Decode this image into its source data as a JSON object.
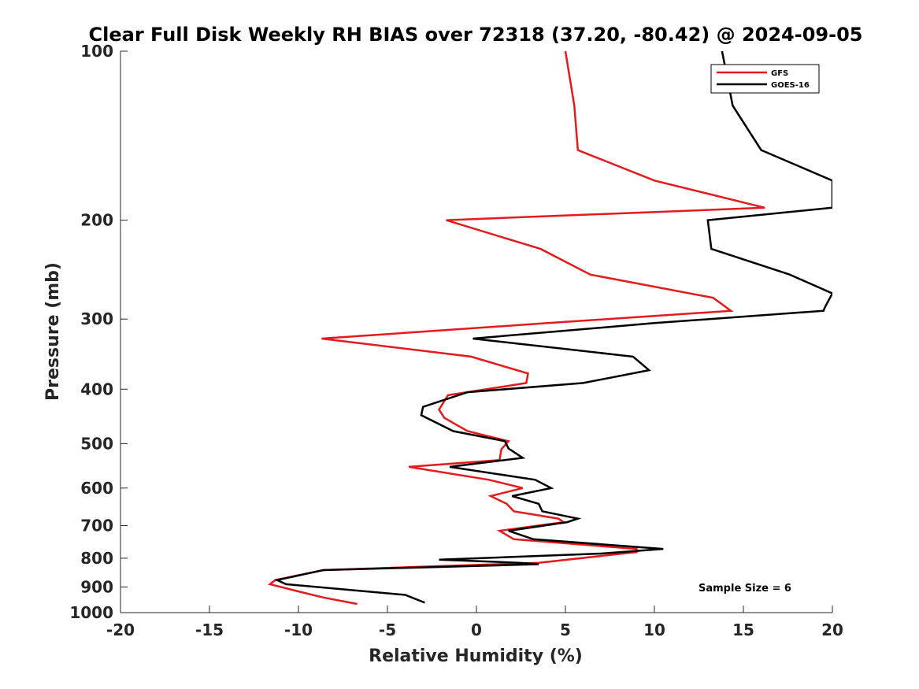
{
  "chart_data": {
    "type": "line",
    "title": "Clear Full Disk Weekly RH BIAS over 72318 (37.20, -80.42) @ 2024-09-05",
    "xlabel": "Relative Humidity (%)",
    "ylabel": "Pressure (mb)",
    "xlim": [
      -20,
      20
    ],
    "ylim": [
      100,
      1000
    ],
    "y_scale": "log",
    "y_reversed": true,
    "x_ticks": [
      "-20",
      "-15",
      "-10",
      "-5",
      "0",
      "5",
      "10",
      "15",
      "20"
    ],
    "y_ticks": [
      "100",
      "200",
      "300",
      "400",
      "500",
      "600",
      "700",
      "800",
      "900",
      "1000"
    ],
    "grid": false,
    "legend_position": "top-right",
    "annotation": "Sample Size = 6",
    "series": [
      {
        "name": "GFS",
        "color": "#e41a1c",
        "points": [
          [
            5.0,
            100
          ],
          [
            5.5,
            125
          ],
          [
            5.7,
            150
          ],
          [
            10.0,
            170
          ],
          [
            16.2,
            190
          ],
          [
            -1.7,
            200
          ],
          [
            3.6,
            225
          ],
          [
            6.4,
            250
          ],
          [
            13.3,
            275
          ],
          [
            14.3,
            290
          ],
          [
            4.0,
            305
          ],
          [
            -8.7,
            325
          ],
          [
            -0.3,
            350
          ],
          [
            2.9,
            375
          ],
          [
            2.8,
            390
          ],
          [
            -1.6,
            410
          ],
          [
            -2.1,
            435
          ],
          [
            -1.8,
            450
          ],
          [
            -0.5,
            475
          ],
          [
            1.8,
            495
          ],
          [
            1.4,
            512
          ],
          [
            1.3,
            535
          ],
          [
            -3.8,
            550
          ],
          [
            0.7,
            580
          ],
          [
            2.6,
            600
          ],
          [
            0.8,
            620
          ],
          [
            1.7,
            640
          ],
          [
            2.1,
            660
          ],
          [
            4.6,
            680
          ],
          [
            4.9,
            690
          ],
          [
            1.3,
            715
          ],
          [
            2.1,
            740
          ],
          [
            9.0,
            770
          ],
          [
            9.0,
            780
          ],
          [
            3.5,
            815
          ],
          [
            -8.6,
            840
          ],
          [
            -11.3,
            875
          ],
          [
            -11.6,
            890
          ],
          [
            -10.1,
            915
          ],
          [
            -8.6,
            940
          ],
          [
            -6.7,
            965
          ]
        ]
      },
      {
        "name": "GOES-16",
        "color": "#000000",
        "points": [
          [
            13.8,
            100
          ],
          [
            14.4,
            125
          ],
          [
            16.0,
            150
          ],
          [
            20.0,
            170
          ],
          [
            20.0,
            190
          ],
          [
            13.0,
            200
          ],
          [
            13.2,
            225
          ],
          [
            17.6,
            250
          ],
          [
            20.0,
            270
          ],
          [
            19.6,
            285
          ],
          [
            19.5,
            290
          ],
          [
            10.0,
            305
          ],
          [
            -0.2,
            325
          ],
          [
            8.8,
            350
          ],
          [
            9.7,
            370
          ],
          [
            6.0,
            390
          ],
          [
            -0.5,
            405
          ],
          [
            -3.0,
            430
          ],
          [
            -3.1,
            445
          ],
          [
            -1.3,
            475
          ],
          [
            1.6,
            495
          ],
          [
            1.8,
            510
          ],
          [
            2.6,
            530
          ],
          [
            -1.5,
            550
          ],
          [
            3.3,
            580
          ],
          [
            4.2,
            600
          ],
          [
            2.0,
            620
          ],
          [
            3.5,
            640
          ],
          [
            3.7,
            660
          ],
          [
            5.7,
            680
          ],
          [
            5.1,
            690
          ],
          [
            1.8,
            715
          ],
          [
            3.2,
            740
          ],
          [
            10.5,
            770
          ],
          [
            7.0,
            785
          ],
          [
            -2.1,
            805
          ],
          [
            2.4,
            815
          ],
          [
            3.5,
            820
          ],
          [
            -8.6,
            840
          ],
          [
            -11.2,
            875
          ],
          [
            -10.7,
            890
          ],
          [
            -4.0,
            930
          ],
          [
            -2.9,
            960
          ]
        ]
      }
    ]
  }
}
